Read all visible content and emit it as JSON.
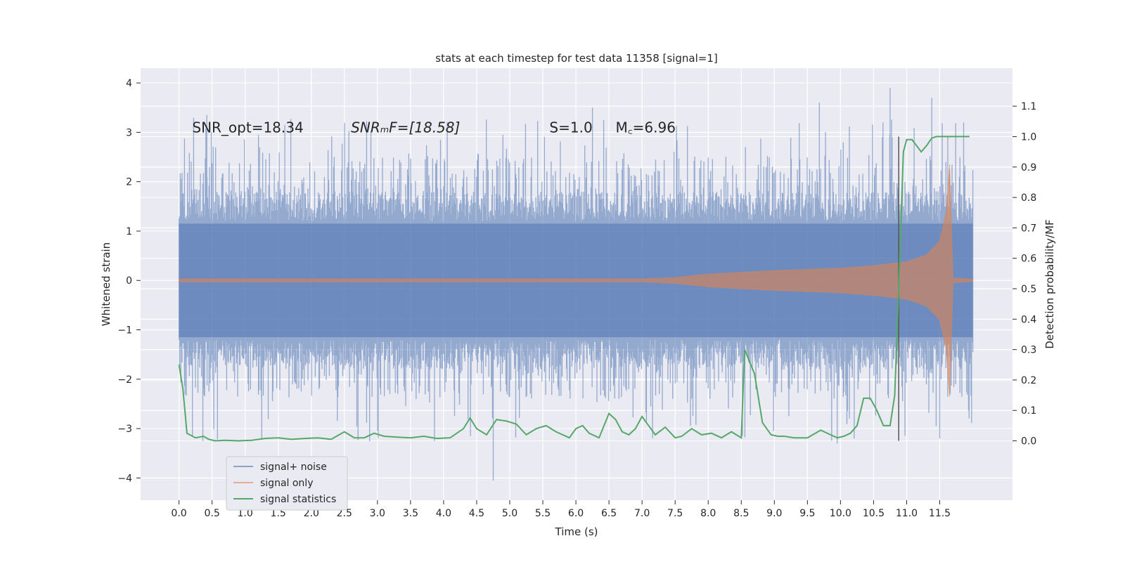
{
  "chart_data": {
    "type": "line",
    "title": "stats at each timestep for test data 11358 [signal=1]",
    "xlabel": "Time (s)",
    "ylabel_left": "Whitened strain",
    "ylabel_right": "Detection probability/MF",
    "xlim": [
      -0.58,
      12.6
    ],
    "ylim_left": [
      -4.45,
      4.3
    ],
    "ylim_right": [
      -0.195,
      1.225
    ],
    "x_ticks": [
      0.0,
      0.5,
      1.0,
      1.5,
      2.0,
      2.5,
      3.0,
      3.5,
      4.0,
      4.5,
      5.0,
      5.5,
      6.0,
      6.5,
      7.0,
      7.5,
      8.0,
      8.5,
      9.0,
      9.5,
      10.0,
      10.5,
      11.0,
      11.5
    ],
    "x_tick_labels": [
      "0.0",
      "0.5",
      "1.0",
      "1.5",
      "2.0",
      "2.5",
      "3.0",
      "3.5",
      "4.0",
      "4.5",
      "5.0",
      "5.5",
      "6.0",
      "6.5",
      "7.0",
      "7.5",
      "8.0",
      "8.5",
      "9.0",
      "9.5",
      "10.0",
      "10.5",
      "11.0",
      "11.5"
    ],
    "y_left_ticks": [
      -4,
      -3,
      -2,
      -1,
      0,
      1,
      2,
      3,
      4
    ],
    "y_left_tick_labels": [
      "−4",
      "−3",
      "−2",
      "−1",
      "0",
      "1",
      "2",
      "3",
      "4"
    ],
    "y_right_ticks": [
      0.0,
      0.1,
      0.2,
      0.3,
      0.4,
      0.5,
      0.6,
      0.7,
      0.8,
      0.9,
      1.0,
      1.1
    ],
    "y_right_tick_labels": [
      "0.0",
      "0.1",
      "0.2",
      "0.3",
      "0.4",
      "0.5",
      "0.6",
      "0.7",
      "0.8",
      "0.9",
      "1.0",
      "1.1"
    ],
    "annotations": [
      {
        "text": "SNR_opt=18.34",
        "x": 0.2,
        "y": 3.1
      },
      {
        "text": "SNRₘF=[18.58]",
        "x": 2.6,
        "y": 3.1
      },
      {
        "text": "S=1.0",
        "x": 5.6,
        "y": 3.1
      },
      {
        "text": "M꜀=6.96",
        "x": 6.6,
        "y": 3.1
      }
    ],
    "vline": {
      "x": 10.88,
      "ymin": 0.0,
      "ymax": 1.0
    },
    "series": [
      {
        "name": "signal+ noise",
        "color": "#4c72b0",
        "axis": "left",
        "t_range": [
          0.0,
          12.0
        ],
        "core_envelope": [
          1.15,
          1.75
        ],
        "spike_range": [
          -4.05,
          3.9
        ]
      },
      {
        "name": "signal only",
        "color": "#dd8452",
        "axis": "left",
        "envelope": {
          "x": [
            0.0,
            7.0,
            7.5,
            8.0,
            9.0,
            10.0,
            10.5,
            11.0,
            11.3,
            11.5,
            11.6,
            11.65,
            11.7,
            12.0
          ],
          "amplitude": [
            0.03,
            0.03,
            0.06,
            0.13,
            0.2,
            0.25,
            0.3,
            0.38,
            0.52,
            0.8,
            1.4,
            2.35,
            0.05,
            0.02
          ]
        }
      },
      {
        "name": "signal statistics",
        "color": "#55a868",
        "axis": "right",
        "x": [
          0.0,
          0.06,
          0.12,
          0.25,
          0.37,
          0.45,
          0.55,
          0.7,
          0.9,
          1.1,
          1.3,
          1.5,
          1.7,
          1.9,
          2.1,
          2.3,
          2.5,
          2.65,
          2.8,
          2.95,
          3.1,
          3.3,
          3.5,
          3.7,
          3.9,
          4.1,
          4.3,
          4.4,
          4.5,
          4.65,
          4.8,
          4.95,
          5.1,
          5.25,
          5.4,
          5.55,
          5.7,
          5.8,
          5.9,
          6.0,
          6.1,
          6.2,
          6.35,
          6.5,
          6.6,
          6.7,
          6.8,
          6.9,
          7.0,
          7.1,
          7.2,
          7.35,
          7.5,
          7.6,
          7.75,
          7.9,
          8.05,
          8.2,
          8.35,
          8.5,
          8.55,
          8.7,
          8.82,
          8.95,
          9.05,
          9.15,
          9.3,
          9.5,
          9.7,
          9.85,
          9.95,
          10.05,
          10.15,
          10.25,
          10.35,
          10.45,
          10.55,
          10.65,
          10.75,
          10.82,
          10.88,
          10.95,
          11.0,
          11.08,
          11.15,
          11.22,
          11.3,
          11.38,
          11.45,
          11.55,
          11.65,
          11.75,
          11.85,
          11.95
        ],
        "y": [
          0.25,
          0.17,
          0.025,
          0.01,
          0.015,
          0.005,
          0.0,
          0.002,
          0.0,
          0.002,
          0.008,
          0.01,
          0.005,
          0.008,
          0.01,
          0.005,
          0.03,
          0.01,
          0.01,
          0.025,
          0.015,
          0.012,
          0.01,
          0.015,
          0.008,
          0.01,
          0.04,
          0.075,
          0.04,
          0.02,
          0.07,
          0.065,
          0.055,
          0.02,
          0.04,
          0.05,
          0.03,
          0.02,
          0.01,
          0.04,
          0.05,
          0.025,
          0.01,
          0.09,
          0.07,
          0.03,
          0.02,
          0.04,
          0.08,
          0.05,
          0.02,
          0.045,
          0.01,
          0.015,
          0.04,
          0.02,
          0.025,
          0.01,
          0.03,
          0.01,
          0.3,
          0.22,
          0.06,
          0.02,
          0.015,
          0.015,
          0.01,
          0.01,
          0.035,
          0.02,
          0.01,
          0.015,
          0.025,
          0.05,
          0.14,
          0.14,
          0.1,
          0.05,
          0.05,
          0.15,
          0.5,
          0.95,
          0.99,
          0.99,
          0.97,
          0.95,
          0.97,
          0.995,
          1.0,
          1.0,
          1.0,
          1.0,
          1.0,
          1.0
        ]
      }
    ],
    "legend": {
      "location": "lower-left",
      "entries": [
        {
          "label": "signal+ noise",
          "color": "#4c72b0"
        },
        {
          "label": "signal only",
          "color": "#dd8452"
        },
        {
          "label": "signal statistics",
          "color": "#55a868"
        }
      ]
    }
  }
}
